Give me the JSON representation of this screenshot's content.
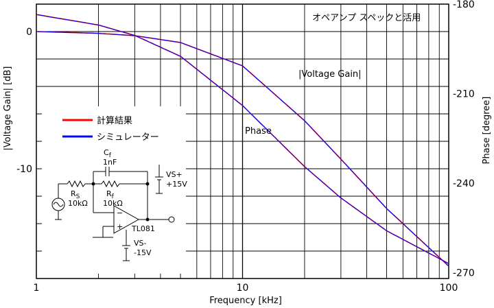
{
  "chart_data": {
    "type": "line",
    "title": "オペアンプ スペックと活用",
    "xlabel": "Frequency [kHz]",
    "ylabel_left": "|Voltage Gain| [dB]",
    "ylabel_right": "Phase [degree]",
    "x_scale": "log",
    "xlim": [
      1,
      100
    ],
    "ylim_left": [
      -18,
      2
    ],
    "ylim_right": [
      -272,
      -180
    ],
    "x_ticks": [
      "1",
      "10",
      "100"
    ],
    "y_left_ticks": [
      {
        "v": 0,
        "label": "0"
      },
      {
        "v": -10,
        "label": "-10"
      }
    ],
    "y_right_ticks": [
      {
        "v": -180,
        "label": "-180"
      },
      {
        "v": -210,
        "label": "-210"
      },
      {
        "v": -240,
        "label": "-240"
      },
      {
        "v": -270,
        "label": "-270"
      }
    ],
    "grid": true,
    "legend": [
      {
        "name": "計算結果",
        "color": "#ff0000"
      },
      {
        "name": "シミュレーター",
        "color": "#0000ff"
      }
    ],
    "series": [
      {
        "name": "|Voltage Gain|",
        "axis": "left",
        "x": [
          1,
          2,
          3,
          5,
          10,
          20,
          30,
          50,
          100
        ],
        "y": [
          0,
          -0.13,
          -0.3,
          -0.8,
          -2.5,
          -6.5,
          -9.3,
          -12.9,
          -17.1
        ]
      },
      {
        "name": "Phase",
        "axis": "right",
        "x": [
          1,
          2,
          3,
          5,
          10,
          20,
          30,
          50,
          100
        ],
        "y": [
          -183.5,
          -187,
          -190.5,
          -197.5,
          -214,
          -234.5,
          -245,
          -256,
          -267
        ]
      }
    ],
    "annotations": [
      {
        "text": "|Voltage Gain|"
      },
      {
        "text": "Phase"
      }
    ]
  },
  "circuit": {
    "cf": "C",
    "cf_sub": "f",
    "cf_value": "1nF",
    "rs": "R",
    "rs_sub": "S",
    "rs_value": "10kΩ",
    "rf": "R",
    "rf_sub": "f",
    "rf_value": "10kΩ",
    "vsp": "VS+",
    "vsp_value": "+15V",
    "vsm": "VS-",
    "vsm_value": "-15V",
    "opamp": "TL081",
    "minus": "−",
    "plus": "+"
  }
}
